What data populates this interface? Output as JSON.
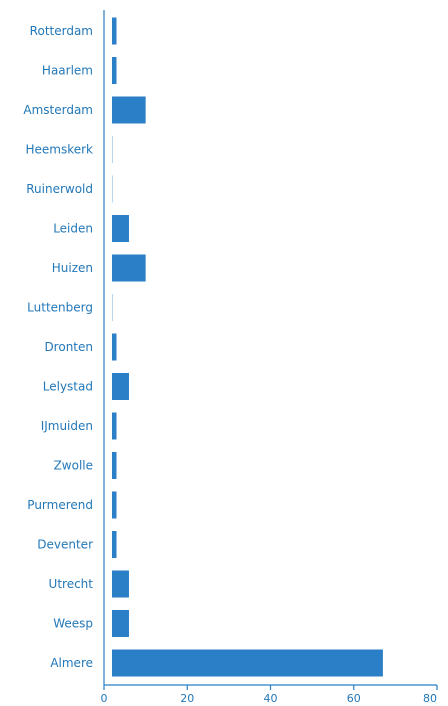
{
  "chart_data": {
    "type": "bar",
    "orientation": "horizontal",
    "categories": [
      "Rotterdam",
      "Haarlem",
      "Amsterdam",
      "Heemskerk",
      "Ruinerwold",
      "Leiden",
      "Huizen",
      "Luttenberg",
      "Dronten",
      "Lelystad",
      "IJmuiden",
      "Zwolle",
      "Purmerend",
      "Deventer",
      "Utrecht",
      "Weesp",
      "Almere"
    ],
    "values": [
      3,
      3,
      10,
      2,
      2,
      6,
      10,
      2,
      3,
      6,
      3,
      3,
      3,
      3,
      6,
      6,
      67
    ],
    "title": "",
    "xlabel": "",
    "ylabel": "",
    "xlim": [
      0,
      80
    ],
    "xticks": [
      "0",
      "20",
      "40",
      "60",
      "80"
    ],
    "grid": false,
    "colors": {
      "bar": "#2a7fc6",
      "text": "#2378b8",
      "axis": "#2a7fc6"
    }
  }
}
